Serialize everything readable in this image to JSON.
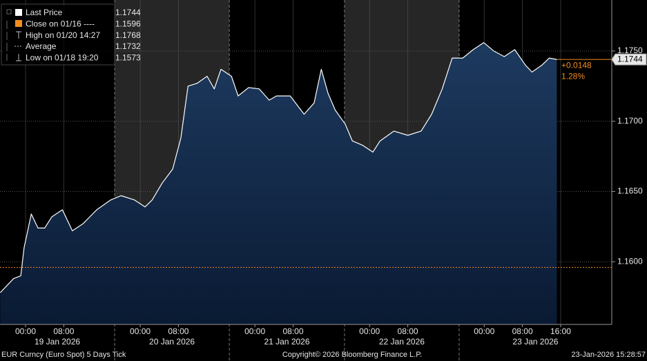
{
  "chart_data": {
    "type": "area",
    "series": [
      {
        "name": "Last Price",
        "color": "#ffffff",
        "x": [
          -5.3,
          -3.9,
          -2.5,
          -1.0,
          -0.3,
          1.2,
          2.6,
          4.0,
          5.5,
          7.7,
          9.8,
          12.0,
          14.9,
          17.8,
          20.0,
          22.8,
          25.0,
          26.5,
          28.6,
          30.8,
          32.5,
          34.0,
          35.9,
          38.0,
          39.5,
          40.9,
          43.1,
          44.5,
          46.7,
          48.9,
          51.0,
          52.5,
          55.4,
          58.3,
          60.4,
          61.9,
          63.3,
          64.8,
          66.9,
          68.4,
          70.5,
          72.7,
          74.2,
          77.1,
          80.0,
          82.8,
          85.0,
          87.2,
          89.3,
          91.5,
          93.7,
          95.9,
          98.0,
          100.2,
          102.4,
          104.6,
          106.0,
          108.1,
          109.6,
          111.2
        ],
        "values": [
          1.1578,
          1.1583,
          1.1588,
          1.159,
          1.161,
          1.1634,
          1.1624,
          1.1624,
          1.1632,
          1.1637,
          1.1622,
          1.1627,
          1.1637,
          1.1644,
          1.1647,
          1.1644,
          1.1639,
          1.1644,
          1.1656,
          1.1666,
          1.1688,
          1.1725,
          1.1727,
          1.1732,
          1.1723,
          1.1737,
          1.1732,
          1.1718,
          1.1724,
          1.1723,
          1.1715,
          1.1718,
          1.1718,
          1.1705,
          1.1713,
          1.1737,
          1.172,
          1.1708,
          1.1698,
          1.1686,
          1.1683,
          1.1678,
          1.1686,
          1.1693,
          1.169,
          1.1693,
          1.1705,
          1.1723,
          1.1745,
          1.1745,
          1.1751,
          1.1756,
          1.175,
          1.1746,
          1.1751,
          1.174,
          1.1735,
          1.174,
          1.1745,
          1.1744
        ]
      }
    ],
    "xlim": [
      -5.35,
      122.7
    ],
    "ylim": [
      1.15554,
      1.17863
    ],
    "xticks": [
      {
        "value": 0,
        "label": "00:00"
      },
      {
        "value": 8,
        "label": "08:00"
      },
      {
        "value": 24,
        "label": "00:00"
      },
      {
        "value": 32,
        "label": "08:00"
      },
      {
        "value": 48,
        "label": "00:00"
      },
      {
        "value": 56,
        "label": "08:00"
      },
      {
        "value": 72,
        "label": "00:00"
      },
      {
        "value": 80,
        "label": "08:00"
      },
      {
        "value": 96,
        "label": "00:00"
      },
      {
        "value": 104,
        "label": "08:00"
      },
      {
        "value": 112,
        "label": "16:00"
      }
    ],
    "yticks": [
      {
        "value": 1.16,
        "label": "1.1600"
      },
      {
        "value": 1.165,
        "label": "1.1650"
      },
      {
        "value": 1.17,
        "label": "1.1700"
      },
      {
        "value": 1.175,
        "label": "1.1750"
      }
    ],
    "days": [
      {
        "label": "19 Jan 2026",
        "start": -5.35,
        "end": 18.65,
        "shaded": false
      },
      {
        "label": "20 Jan 2026",
        "start": 18.65,
        "end": 42.65,
        "shaded": true
      },
      {
        "label": "21 Jan 2026",
        "start": 42.65,
        "end": 66.75,
        "shaded": false
      },
      {
        "label": "22 Jan 2026",
        "start": 66.75,
        "end": 90.75,
        "shaded": true
      },
      {
        "label": "23 Jan 2026",
        "start": 90.75,
        "end": 122.7,
        "shaded": false
      }
    ],
    "legend": [
      {
        "label": "Last Price",
        "value": 1.1744
      },
      {
        "label": "Close on 01/16 ----",
        "value": 1.1596
      },
      {
        "label": "High on 01/20 14:27",
        "value": 1.1768
      },
      {
        "label": "Average",
        "value": 1.1732
      },
      {
        "label": "Low on 01/18 19:20",
        "value": 1.1573
      }
    ],
    "change": {
      "value": 0.0148,
      "label": "+0.0148"
    },
    "change_pct": {
      "value": 1.28,
      "label": "1.28%"
    },
    "footer": {
      "left": "EUR Curncy (Euro Spot) 5 Days Tick",
      "center": "Copyright© 2026 Bloomberg Finance L.P.",
      "right": "23-Jan-2026 15:28:57"
    }
  }
}
